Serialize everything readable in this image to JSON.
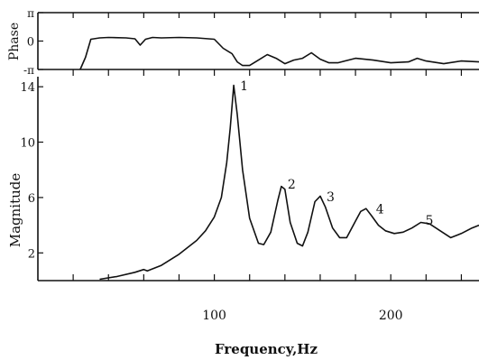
{
  "chart_data": [
    {
      "type": "line",
      "name": "phase",
      "ylabel": "Phase",
      "ytick_labels": [
        "π",
        "0",
        "-π"
      ],
      "ylim": [
        -3.1416,
        3.1416
      ],
      "xlim": [
        0,
        250
      ],
      "x": [
        24,
        27,
        30,
        35,
        40,
        50,
        55,
        58,
        61,
        65,
        70,
        80,
        90,
        100,
        105,
        110,
        113,
        116,
        120,
        125,
        130,
        135,
        140,
        145,
        150,
        155,
        160,
        165,
        170,
        180,
        190,
        200,
        210,
        215,
        220,
        230,
        240,
        250
      ],
      "y": [
        -3.14,
        -1.8,
        0.2,
        0.35,
        0.4,
        0.35,
        0.25,
        -0.45,
        0.2,
        0.4,
        0.35,
        0.4,
        0.35,
        0.2,
        -0.8,
        -1.4,
        -2.3,
        -2.7,
        -2.7,
        -2.1,
        -1.5,
        -1.9,
        -2.5,
        -2.1,
        -1.9,
        -1.3,
        -2.0,
        -2.4,
        -2.4,
        -1.9,
        -2.1,
        -2.4,
        -2.3,
        -1.9,
        -2.2,
        -2.5,
        -2.2,
        -2.3
      ]
    },
    {
      "type": "line",
      "name": "magnitude",
      "xlabel": "Frequency,Hz",
      "ylabel": "Magnitude",
      "xlim": [
        0,
        250
      ],
      "ylim": [
        0,
        14.4
      ],
      "xticks": [
        100,
        200
      ],
      "yticks": [
        2,
        6,
        10,
        14
      ],
      "peak_labels": [
        {
          "label": "1",
          "x": 111,
          "y": 14.0
        },
        {
          "label": "2",
          "x": 138,
          "y": 6.9
        },
        {
          "label": "3",
          "x": 160,
          "y": 6.0
        },
        {
          "label": "4",
          "x": 188,
          "y": 5.1
        },
        {
          "label": "5",
          "x": 216,
          "y": 4.3
        }
      ],
      "x": [
        35,
        45,
        55,
        60,
        62,
        70,
        80,
        90,
        95,
        100,
        104,
        107,
        109,
        111,
        113,
        116,
        120,
        125,
        128,
        132,
        136,
        138,
        140,
        143,
        147,
        150,
        153,
        157,
        160,
        163,
        167,
        171,
        175,
        180,
        183,
        186,
        189,
        193,
        197,
        202,
        207,
        212,
        217,
        222,
        228,
        234,
        240,
        246,
        250
      ],
      "y": [
        0.1,
        0.3,
        0.6,
        0.8,
        0.7,
        1.1,
        1.9,
        2.9,
        3.6,
        4.6,
        6.0,
        8.5,
        11.0,
        14.1,
        12.0,
        8.0,
        4.5,
        2.7,
        2.6,
        3.5,
        5.8,
        6.8,
        6.6,
        4.2,
        2.7,
        2.5,
        3.5,
        5.7,
        6.1,
        5.3,
        3.8,
        3.1,
        3.1,
        4.3,
        5.0,
        5.2,
        4.7,
        4.0,
        3.6,
        3.4,
        3.5,
        3.8,
        4.2,
        4.1,
        3.6,
        3.1,
        3.4,
        3.8,
        4.0
      ]
    }
  ]
}
